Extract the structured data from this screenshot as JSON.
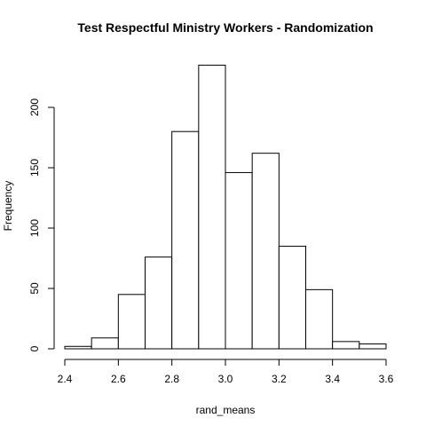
{
  "chart_data": {
    "type": "bar",
    "title": "Test Respectful Ministry Workers - Randomization",
    "xlabel": "rand_means",
    "ylabel": "Frequency",
    "bins": [
      {
        "start": 2.4,
        "end": 2.5,
        "count": 2
      },
      {
        "start": 2.5,
        "end": 2.6,
        "count": 9
      },
      {
        "start": 2.6,
        "end": 2.7,
        "count": 45
      },
      {
        "start": 2.7,
        "end": 2.8,
        "count": 76
      },
      {
        "start": 2.8,
        "end": 2.9,
        "count": 180
      },
      {
        "start": 2.9,
        "end": 3.0,
        "count": 235
      },
      {
        "start": 3.0,
        "end": 3.1,
        "count": 146
      },
      {
        "start": 3.1,
        "end": 3.2,
        "count": 162
      },
      {
        "start": 3.2,
        "end": 3.3,
        "count": 85
      },
      {
        "start": 3.3,
        "end": 3.4,
        "count": 49
      },
      {
        "start": 3.4,
        "end": 3.5,
        "count": 6
      },
      {
        "start": 3.5,
        "end": 3.6,
        "count": 4
      }
    ],
    "xlim": [
      2.4,
      3.6
    ],
    "ylim": [
      0,
      235
    ],
    "x_ticks": [
      2.4,
      2.6,
      2.8,
      3.0,
      3.2,
      3.4,
      3.6
    ],
    "x_tick_labels": [
      "2.4",
      "2.6",
      "2.8",
      "3.0",
      "3.2",
      "3.4",
      "3.6"
    ],
    "y_ticks": [
      0,
      50,
      100,
      150,
      200
    ],
    "y_tick_labels": [
      "0",
      "50",
      "100",
      "150",
      "200"
    ],
    "grid": false
  }
}
